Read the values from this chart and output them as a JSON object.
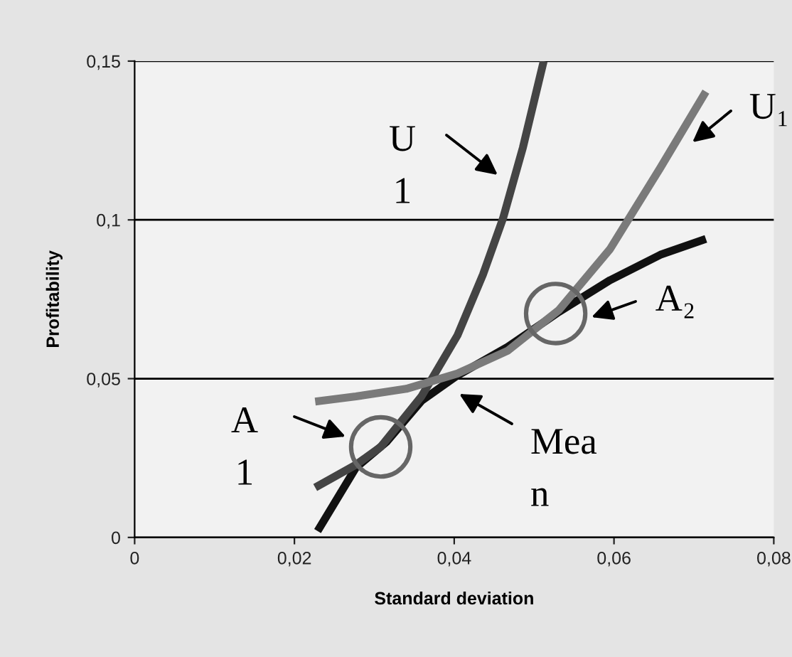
{
  "chart_data": {
    "type": "line",
    "xlabel": "Standard deviation",
    "ylabel": "Profitability",
    "xlim": [
      0,
      0.08
    ],
    "xticks": [
      {
        "value": 0,
        "label": "0"
      },
      {
        "value": 0.02,
        "label": "0,02"
      },
      {
        "value": 0.04,
        "label": "0,04"
      },
      {
        "value": 0.06,
        "label": "0,06"
      },
      {
        "value": 0.08,
        "label": "0,08"
      }
    ],
    "ylim": [
      0,
      0.15
    ],
    "yticks": [
      {
        "value": 0,
        "label": "0"
      },
      {
        "value": 0.05,
        "label": "0,05"
      },
      {
        "value": 0.1,
        "label": "0,1"
      },
      {
        "value": 0.15,
        "label": "0,15"
      }
    ],
    "grid": "y",
    "marker": "none",
    "series": [
      {
        "color": "#111111",
        "x": [
          0.0229,
          0.0277,
          0.0315,
          0.0359,
          0.0404,
          0.0467,
          0.0531,
          0.0595,
          0.0658,
          0.0715
        ],
        "values": [
          0.002,
          0.022,
          0.03,
          0.043,
          0.051,
          0.06,
          0.071,
          0.081,
          0.089,
          0.094
        ]
      },
      {
        "color": "#444444",
        "x": [
          0.0226,
          0.0277,
          0.0308,
          0.0359,
          0.0404,
          0.0436,
          0.0461,
          0.0486,
          0.0512
        ],
        "values": [
          0.0157,
          0.0229,
          0.0285,
          0.0444,
          0.0636,
          0.0828,
          0.1004,
          0.1228,
          0.15
        ]
      },
      {
        "color": "#7a7a7a",
        "x": [
          0.0226,
          0.0277,
          0.034,
          0.0404,
          0.0467,
          0.0531,
          0.0595,
          0.0658,
          0.0715
        ],
        "values": [
          0.0428,
          0.0444,
          0.0468,
          0.0516,
          0.0588,
          0.0716,
          0.0908,
          0.1164,
          0.1404
        ]
      },
      {
        "type": "scatter",
        "marker": "circle",
        "color": "#666666",
        "x": [
          0.0308,
          0.0527
        ],
        "values": [
          0.0285,
          0.0705
        ]
      }
    ],
    "annotations": [
      "U\n1",
      "U₁",
      "A₂",
      "A\n1",
      "Mea\nn"
    ]
  }
}
